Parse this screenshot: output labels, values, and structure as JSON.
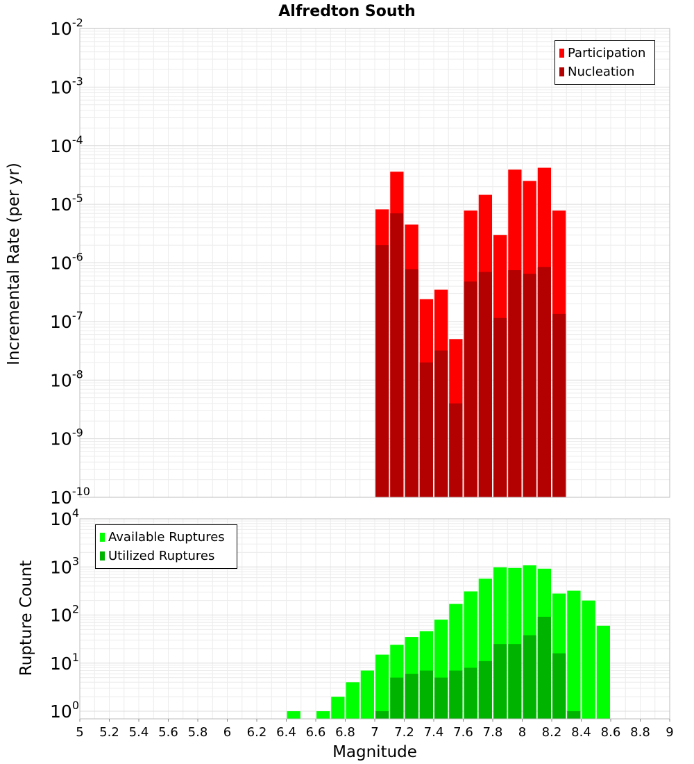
{
  "chart_data": [
    {
      "type": "bar",
      "title": "Alfredton South",
      "xlabel": "",
      "ylabel": "Incremental Rate (per yr)",
      "yscale": "log",
      "ylim_exponents": [
        -10,
        -2
      ],
      "xlim": [
        5,
        9
      ],
      "bin_width": 0.1,
      "grid": true,
      "legend_position": "top-right",
      "series": [
        {
          "name": "Participation",
          "color": "#ff0000",
          "x": [
            7.0,
            7.1,
            7.2,
            7.3,
            7.4,
            7.5,
            7.6,
            7.7,
            7.8,
            7.9,
            8.0,
            8.1,
            8.2
          ],
          "values": [
            8.2e-06,
            3.6e-05,
            4.5e-06,
            2.4e-07,
            3.5e-07,
            5e-08,
            7.8e-06,
            1.45e-05,
            3e-06,
            3.9e-05,
            2.5e-05,
            4.2e-05,
            7.8e-06
          ]
        },
        {
          "name": "Nucleation",
          "color": "#b30000",
          "x": [
            7.0,
            7.1,
            7.2,
            7.3,
            7.4,
            7.5,
            7.6,
            7.7,
            7.8,
            7.9,
            8.0,
            8.1,
            8.2
          ],
          "values": [
            2e-06,
            7e-06,
            7.8e-07,
            2e-08,
            3.2e-08,
            4e-09,
            4.8e-07,
            7e-07,
            1.15e-07,
            7.5e-07,
            6.5e-07,
            8.5e-07,
            1.35e-07
          ]
        }
      ]
    },
    {
      "type": "bar",
      "title": "",
      "xlabel": "Magnitude",
      "ylabel": "Rupture Count",
      "yscale": "log",
      "ylim_exponents": [
        0,
        4
      ],
      "xlim": [
        5,
        9
      ],
      "xticks": [
        "5",
        "5.2",
        "5.4",
        "5.6",
        "5.8",
        "6",
        "6.2",
        "6.4",
        "6.6",
        "6.8",
        "7",
        "7.2",
        "7.4",
        "7.6",
        "7.8",
        "8",
        "8.2",
        "8.4",
        "8.6",
        "8.8",
        "9"
      ],
      "bin_width": 0.1,
      "grid": true,
      "legend_position": "top-left",
      "series": [
        {
          "name": "Available Ruptures",
          "color": "#00ff00",
          "x": [
            6.4,
            6.6,
            6.7,
            6.8,
            6.9,
            7.0,
            7.1,
            7.2,
            7.3,
            7.4,
            7.5,
            7.6,
            7.7,
            7.8,
            7.9,
            8.0,
            8.1,
            8.2,
            8.3,
            8.4,
            8.5
          ],
          "values": [
            1,
            1,
            2,
            4,
            7,
            15,
            24,
            35,
            46,
            80,
            170,
            310,
            570,
            980,
            950,
            1080,
            920,
            280,
            320,
            200,
            60
          ]
        },
        {
          "name": "Utilized Ruptures",
          "color": "#00b300",
          "x": [
            7.0,
            7.1,
            7.2,
            7.3,
            7.4,
            7.5,
            7.6,
            7.7,
            7.8,
            7.9,
            8.0,
            8.1,
            8.2,
            8.3
          ],
          "values": [
            1,
            5,
            6,
            7,
            5,
            7,
            8,
            11,
            25,
            25,
            38,
            92,
            16,
            1
          ]
        }
      ]
    }
  ],
  "top_exponent_labels": [
    "-2",
    "-3",
    "-4",
    "-5",
    "-6",
    "-7",
    "-8",
    "-9",
    "-10"
  ],
  "bottom_exponent_labels": [
    "4",
    "3",
    "2",
    "1",
    "0"
  ],
  "y_tick_base": "10"
}
